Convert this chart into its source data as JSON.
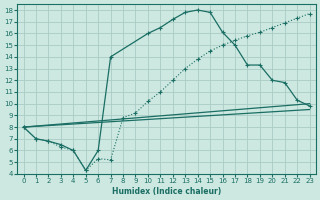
{
  "xlabel": "Humidex (Indice chaleur)",
  "background_color": "#cce8e0",
  "grid_color": "#aaccC4",
  "line_color": "#1a6e64",
  "xlim": [
    -0.5,
    23.5
  ],
  "ylim": [
    4,
    18.5
  ],
  "xticks": [
    0,
    1,
    2,
    3,
    4,
    5,
    6,
    7,
    8,
    9,
    10,
    11,
    12,
    13,
    14,
    15,
    16,
    17,
    18,
    19,
    20,
    21,
    22,
    23
  ],
  "yticks": [
    4,
    5,
    6,
    7,
    8,
    9,
    10,
    11,
    12,
    13,
    14,
    15,
    16,
    17,
    18
  ],
  "dotted_x": [
    0,
    1,
    2,
    3,
    4,
    5,
    6,
    7,
    8,
    9,
    10,
    11,
    12,
    13,
    14,
    15,
    16,
    17,
    18,
    19,
    20,
    21,
    22,
    23
  ],
  "dotted_y": [
    8.0,
    7.0,
    6.8,
    6.3,
    6.0,
    4.3,
    5.3,
    5.2,
    8.8,
    9.2,
    10.2,
    11.0,
    12.0,
    13.0,
    13.8,
    14.5,
    15.0,
    15.4,
    15.8,
    16.1,
    16.5,
    16.9,
    17.3,
    17.7
  ],
  "main_x": [
    0,
    1,
    2,
    3,
    4,
    5,
    6,
    7,
    10,
    11,
    12,
    13,
    14,
    15,
    16,
    17,
    18,
    19,
    20,
    21,
    22,
    23
  ],
  "main_y": [
    8.0,
    7.0,
    6.8,
    6.5,
    6.0,
    4.3,
    6.0,
    14.0,
    16.0,
    16.5,
    17.2,
    17.8,
    18.0,
    17.8,
    16.1,
    15.0,
    13.3,
    13.3,
    12.0,
    11.8,
    10.3,
    9.8
  ],
  "line1_x": [
    0,
    23
  ],
  "line1_y": [
    8.0,
    10.0
  ],
  "line2_x": [
    0,
    23
  ],
  "line2_y": [
    8.0,
    9.5
  ]
}
